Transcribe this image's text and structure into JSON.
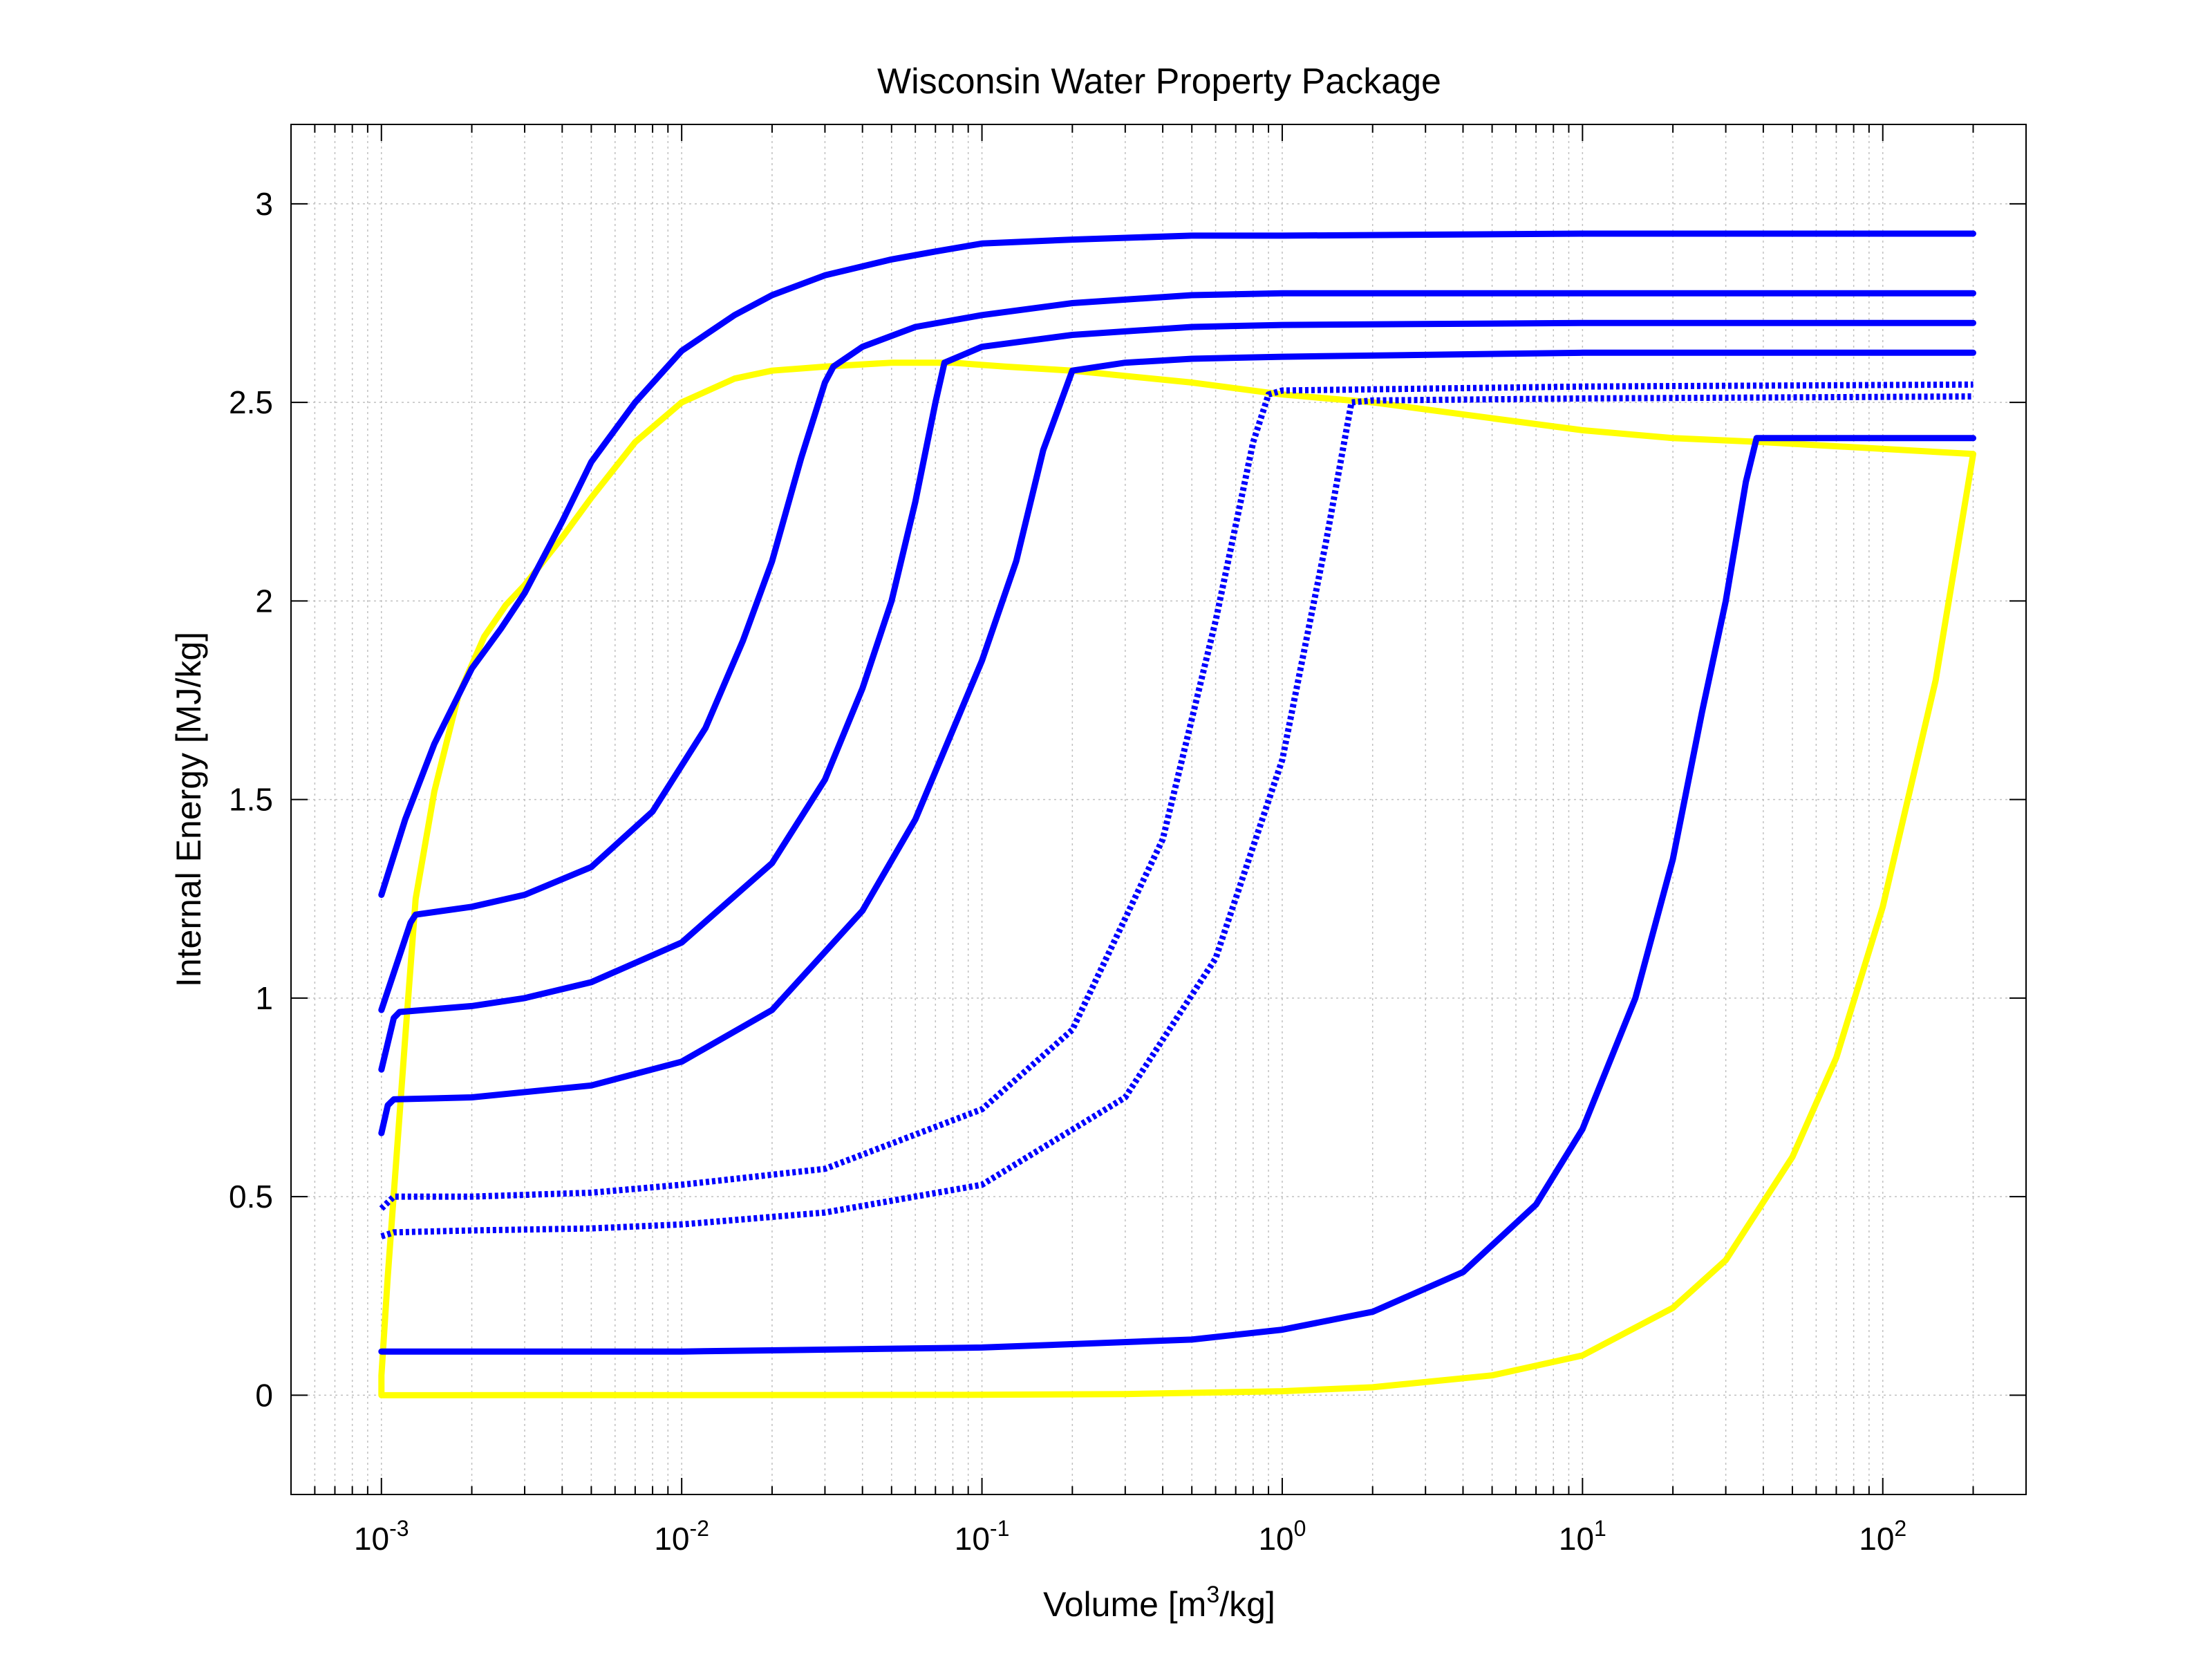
{
  "chart_data": {
    "type": "line",
    "title": "Wisconsin Water Property Package",
    "xlabel": {
      "pre": "Volume [m",
      "sup": "3",
      "post": "/kg]"
    },
    "ylabel": "Internal Energy [MJ/kg]",
    "xscale": "log",
    "grid": "on",
    "xlim": [
      0.0005,
      300
    ],
    "ylim": [
      -0.25,
      3.2
    ],
    "xticks": [
      {
        "value": 0.001,
        "base": "10",
        "exp": "-3"
      },
      {
        "value": 0.01,
        "base": "10",
        "exp": "-2"
      },
      {
        "value": 0.1,
        "base": "10",
        "exp": "-1"
      },
      {
        "value": 1,
        "base": "10",
        "exp": "0"
      },
      {
        "value": 10,
        "base": "10",
        "exp": "1"
      },
      {
        "value": 100,
        "base": "10",
        "exp": "2"
      }
    ],
    "yticks": [
      {
        "value": 0,
        "label": "0"
      },
      {
        "value": 0.5,
        "label": "0.5"
      },
      {
        "value": 1,
        "label": "1"
      },
      {
        "value": 1.5,
        "label": "1.5"
      },
      {
        "value": 2,
        "label": "2"
      },
      {
        "value": 2.5,
        "label": "2.5"
      },
      {
        "value": 3,
        "label": "3"
      }
    ],
    "series": [
      {
        "color": "#ffff00",
        "style": "solid",
        "x": [
          200,
          150,
          100,
          70,
          50,
          30,
          20,
          10,
          5,
          2,
          1,
          0.3,
          0.1,
          0.03,
          0.01,
          0.003,
          0.001,
          0.001,
          0.00105,
          0.0012,
          0.0013,
          0.0015,
          0.0018,
          0.0022,
          0.0026,
          0.003,
          0.004,
          0.005,
          0.007,
          0.01,
          0.015,
          0.02,
          0.03,
          0.05,
          0.08,
          0.12,
          0.2,
          0.5,
          1,
          2,
          5,
          10,
          20,
          40,
          200
        ],
        "y": [
          2.37,
          1.8,
          1.23,
          0.85,
          0.6,
          0.34,
          0.22,
          0.1,
          0.05,
          0.02,
          0.01,
          0.003,
          0.001,
          0.0005,
          0.0002,
          0.0001,
          0,
          0.05,
          0.3,
          0.9,
          1.25,
          1.52,
          1.76,
          1.91,
          1.99,
          2.04,
          2.16,
          2.26,
          2.4,
          2.5,
          2.56,
          2.58,
          2.59,
          2.6,
          2.6,
          2.59,
          2.58,
          2.55,
          2.52,
          2.5,
          2.46,
          2.43,
          2.41,
          2.4,
          2.37
        ]
      },
      {
        "color": "#0000ff",
        "style": "solid",
        "x": [
          0.001,
          0.0012,
          0.0015,
          0.002,
          0.0025,
          0.003,
          0.004,
          0.005,
          0.007,
          0.01,
          0.015,
          0.02,
          0.03,
          0.05,
          0.07,
          0.1,
          0.2,
          0.5,
          1,
          10,
          200
        ],
        "y": [
          1.26,
          1.45,
          1.64,
          1.83,
          1.93,
          2.02,
          2.2,
          2.35,
          2.5,
          2.63,
          2.72,
          2.77,
          2.82,
          2.86,
          2.88,
          2.9,
          2.91,
          2.92,
          2.92,
          2.925,
          2.925
        ]
      },
      {
        "color": "#0000ff",
        "style": "solid",
        "x": [
          0.001,
          0.00125,
          0.0013,
          0.002,
          0.003,
          0.005,
          0.008,
          0.012,
          0.016,
          0.02,
          0.025,
          0.03,
          0.032,
          0.04,
          0.06,
          0.1,
          0.2,
          0.5,
          1,
          10,
          200
        ],
        "y": [
          0.97,
          1.19,
          1.21,
          1.23,
          1.26,
          1.33,
          1.47,
          1.68,
          1.9,
          2.1,
          2.36,
          2.55,
          2.59,
          2.64,
          2.69,
          2.72,
          2.75,
          2.77,
          2.775,
          2.775,
          2.775
        ]
      },
      {
        "color": "#0000ff",
        "style": "solid",
        "x": [
          0.001,
          0.0011,
          0.00115,
          0.002,
          0.003,
          0.005,
          0.01,
          0.02,
          0.03,
          0.04,
          0.05,
          0.06,
          0.07,
          0.075,
          0.1,
          0.2,
          0.5,
          1,
          10,
          200
        ],
        "y": [
          0.82,
          0.95,
          0.965,
          0.98,
          1.0,
          1.04,
          1.14,
          1.34,
          1.55,
          1.78,
          2.0,
          2.25,
          2.5,
          2.6,
          2.64,
          2.67,
          2.69,
          2.695,
          2.7,
          2.7
        ]
      },
      {
        "color": "#0000ff",
        "style": "solid",
        "x": [
          0.001,
          0.00105,
          0.0011,
          0.002,
          0.005,
          0.01,
          0.02,
          0.04,
          0.06,
          0.1,
          0.13,
          0.16,
          0.2,
          0.3,
          0.5,
          1,
          10,
          200
        ],
        "y": [
          0.66,
          0.73,
          0.745,
          0.75,
          0.78,
          0.84,
          0.97,
          1.22,
          1.45,
          1.85,
          2.1,
          2.38,
          2.58,
          2.6,
          2.61,
          2.615,
          2.625,
          2.625
        ]
      },
      {
        "color": "#0000ff",
        "style": "dotted",
        "x": [
          0.001,
          0.0011,
          0.002,
          0.005,
          0.01,
          0.03,
          0.1,
          0.2,
          0.4,
          0.6,
          0.8,
          0.9,
          1,
          10,
          200
        ],
        "y": [
          0.47,
          0.5,
          0.5,
          0.51,
          0.53,
          0.57,
          0.72,
          0.92,
          1.4,
          1.95,
          2.4,
          2.52,
          2.53,
          2.54,
          2.545
        ]
      },
      {
        "color": "#0000ff",
        "style": "dotted",
        "x": [
          0.001,
          0.0011,
          0.002,
          0.005,
          0.01,
          0.03,
          0.1,
          0.3,
          0.6,
          1,
          1.4,
          1.7,
          2,
          10,
          200
        ],
        "y": [
          0.4,
          0.41,
          0.415,
          0.42,
          0.43,
          0.46,
          0.53,
          0.75,
          1.1,
          1.6,
          2.15,
          2.5,
          2.505,
          2.51,
          2.515
        ]
      },
      {
        "color": "#0000ff",
        "style": "solid",
        "x": [
          0.001,
          0.01,
          0.1,
          0.5,
          1,
          2,
          4,
          7,
          10,
          15,
          20,
          25,
          30,
          35,
          38,
          200
        ],
        "y": [
          0.11,
          0.11,
          0.12,
          0.14,
          0.165,
          0.21,
          0.31,
          0.48,
          0.67,
          1.0,
          1.35,
          1.72,
          2.0,
          2.3,
          2.41,
          2.41
        ]
      }
    ]
  }
}
